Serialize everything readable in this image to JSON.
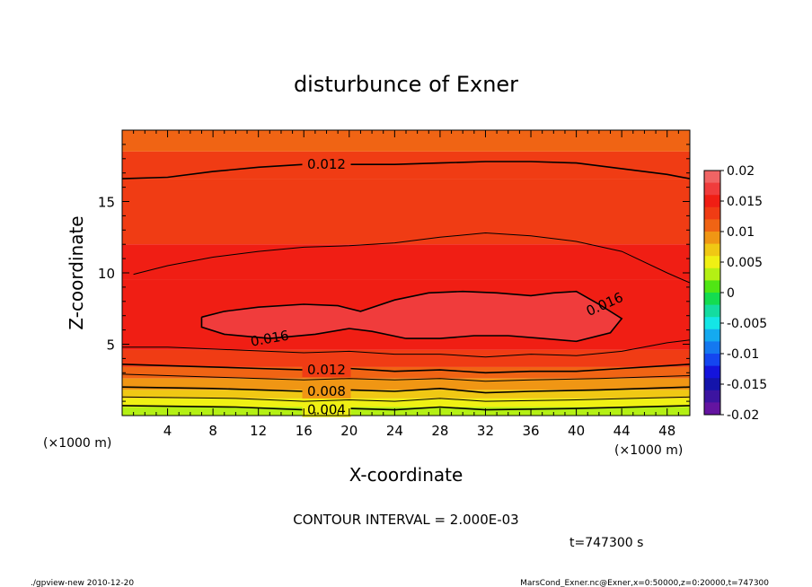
{
  "chart_data": {
    "type": "contour",
    "title": "disturbunce of Exner",
    "xlabel": "X-coordinate",
    "ylabel": "Z-coordinate",
    "x_unit_left": "(×1000 m)",
    "x_unit_right": "(×1000 m)",
    "xlim": [
      0,
      50
    ],
    "ylim": [
      0,
      20
    ],
    "x_ticks": [
      4,
      8,
      12,
      16,
      20,
      24,
      28,
      32,
      36,
      40,
      44,
      48
    ],
    "y_ticks": [
      5,
      10,
      15
    ],
    "contour_interval_text": "CONTOUR INTERVAL = 2.000E-03",
    "time_text": "t=747300 s",
    "footer_left": "./gpview-new   2010-12-20",
    "footer_right": "MarsCond_Exner.nc@Exner,x=0:50000,z=0:20000,t=747300",
    "colorbar": {
      "ticks": [
        "0.02",
        "0.015",
        "0.01",
        "0.005",
        "0",
        "-0.005",
        "-0.01",
        "-0.015",
        "-0.02"
      ],
      "levels": [
        {
          "from": 0.018,
          "to": 0.02,
          "color": "#f06464"
        },
        {
          "from": 0.016,
          "to": 0.018,
          "color": "#f03c3c"
        },
        {
          "from": 0.014,
          "to": 0.016,
          "color": "#f01e14"
        },
        {
          "from": 0.012,
          "to": 0.014,
          "color": "#f03c14"
        },
        {
          "from": 0.01,
          "to": 0.012,
          "color": "#f06414"
        },
        {
          "from": 0.008,
          "to": 0.01,
          "color": "#f09614"
        },
        {
          "from": 0.006,
          "to": 0.008,
          "color": "#f0c814"
        },
        {
          "from": 0.004,
          "to": 0.006,
          "color": "#f0f014"
        },
        {
          "from": 0.002,
          "to": 0.004,
          "color": "#b4f014"
        },
        {
          "from": 0.0,
          "to": 0.002,
          "color": "#50e614"
        },
        {
          "from": -0.002,
          "to": 0.0,
          "color": "#14dc50"
        },
        {
          "from": -0.004,
          "to": -0.002,
          "color": "#14dca0"
        },
        {
          "from": -0.006,
          "to": -0.004,
          "color": "#14e6e6"
        },
        {
          "from": -0.008,
          "to": -0.006,
          "color": "#14aaf0"
        },
        {
          "from": -0.01,
          "to": -0.008,
          "color": "#1478f0"
        },
        {
          "from": -0.012,
          "to": -0.01,
          "color": "#1446f0"
        },
        {
          "from": -0.014,
          "to": -0.012,
          "color": "#1414dc"
        },
        {
          "from": -0.016,
          "to": -0.014,
          "color": "#1414aa"
        },
        {
          "from": -0.018,
          "to": -0.016,
          "color": "#3c14a0"
        },
        {
          "from": -0.02,
          "to": -0.018,
          "color": "#6414a0"
        }
      ]
    },
    "contours": [
      {
        "level": 0.016,
        "label": "0.016",
        "points": [
          [
            7,
            6.9
          ],
          [
            9,
            7.3
          ],
          [
            12,
            7.6
          ],
          [
            16,
            7.8
          ],
          [
            19,
            7.7
          ],
          [
            21,
            7.3
          ],
          [
            24,
            8.1
          ],
          [
            27,
            8.6
          ],
          [
            30,
            8.7
          ],
          [
            33,
            8.6
          ],
          [
            36,
            8.4
          ],
          [
            38,
            8.6
          ],
          [
            40,
            8.7
          ],
          [
            42,
            7.8
          ],
          [
            44,
            6.8
          ],
          [
            43,
            5.8
          ],
          [
            40,
            5.2
          ],
          [
            37,
            5.4
          ],
          [
            34,
            5.6
          ],
          [
            31,
            5.6
          ],
          [
            28,
            5.4
          ],
          [
            25,
            5.4
          ],
          [
            22,
            5.9
          ],
          [
            20,
            6.1
          ],
          [
            17,
            5.7
          ],
          [
            13,
            5.4
          ],
          [
            9,
            5.7
          ],
          [
            7,
            6.2
          ],
          [
            7,
            6.9
          ]
        ]
      },
      {
        "level": 0.014,
        "points": [
          [
            1,
            9.9
          ],
          [
            4,
            10.5
          ],
          [
            8,
            11.1
          ],
          [
            12,
            11.5
          ],
          [
            16,
            11.8
          ],
          [
            20,
            11.9
          ],
          [
            24,
            12.1
          ],
          [
            28,
            12.5
          ],
          [
            32,
            12.8
          ],
          [
            36,
            12.6
          ],
          [
            40,
            12.2
          ],
          [
            44,
            11.5
          ],
          [
            48,
            10.0
          ],
          [
            50,
            9.3
          ]
        ]
      },
      {
        "level": 0.014,
        "points": [
          [
            0,
            4.8
          ],
          [
            4,
            4.8
          ],
          [
            10,
            4.6
          ],
          [
            16,
            4.4
          ],
          [
            20,
            4.5
          ],
          [
            24,
            4.3
          ],
          [
            28,
            4.3
          ],
          [
            32,
            4.1
          ],
          [
            36,
            4.3
          ],
          [
            40,
            4.2
          ],
          [
            44,
            4.5
          ],
          [
            48,
            5.1
          ],
          [
            50,
            5.3
          ]
        ]
      },
      {
        "level": 0.012,
        "label": "0.012",
        "points": [
          [
            0,
            16.6
          ],
          [
            4,
            16.7
          ],
          [
            8,
            17.1
          ],
          [
            12,
            17.4
          ],
          [
            16,
            17.6
          ],
          [
            20,
            17.6
          ],
          [
            24,
            17.6
          ],
          [
            28,
            17.7
          ],
          [
            32,
            17.8
          ],
          [
            36,
            17.8
          ],
          [
            40,
            17.7
          ],
          [
            44,
            17.3
          ],
          [
            48,
            16.9
          ],
          [
            50,
            16.6
          ]
        ]
      },
      {
        "level": 0.012,
        "label": "0.012",
        "points": [
          [
            0,
            3.6
          ],
          [
            4,
            3.5
          ],
          [
            8,
            3.4
          ],
          [
            12,
            3.3
          ],
          [
            16,
            3.2
          ],
          [
            20,
            3.3
          ],
          [
            24,
            3.1
          ],
          [
            28,
            3.2
          ],
          [
            32,
            3.0
          ],
          [
            36,
            3.1
          ],
          [
            40,
            3.1
          ],
          [
            44,
            3.3
          ],
          [
            48,
            3.5
          ],
          [
            50,
            3.6
          ]
        ]
      },
      {
        "level": 0.01,
        "points": [
          [
            0,
            2.9
          ],
          [
            8,
            2.7
          ],
          [
            16,
            2.5
          ],
          [
            20,
            2.6
          ],
          [
            24,
            2.5
          ],
          [
            28,
            2.6
          ],
          [
            32,
            2.4
          ],
          [
            36,
            2.5
          ],
          [
            42,
            2.6
          ],
          [
            50,
            2.8
          ]
        ]
      },
      {
        "level": 0.008,
        "label": "0.008",
        "points": [
          [
            0,
            2.0
          ],
          [
            8,
            1.9
          ],
          [
            16,
            1.7
          ],
          [
            20,
            1.8
          ],
          [
            24,
            1.7
          ],
          [
            28,
            1.9
          ],
          [
            32,
            1.6
          ],
          [
            36,
            1.7
          ],
          [
            42,
            1.8
          ],
          [
            50,
            2.0
          ]
        ]
      },
      {
        "level": 0.006,
        "points": [
          [
            0,
            1.3
          ],
          [
            10,
            1.2
          ],
          [
            16,
            1.0
          ],
          [
            20,
            1.1
          ],
          [
            24,
            1.0
          ],
          [
            28,
            1.2
          ],
          [
            32,
            1.0
          ],
          [
            40,
            1.1
          ],
          [
            50,
            1.3
          ]
        ]
      },
      {
        "level": 0.004,
        "label": "0.004",
        "points": [
          [
            0,
            0.7
          ],
          [
            10,
            0.6
          ],
          [
            16,
            0.4
          ],
          [
            20,
            0.5
          ],
          [
            24,
            0.4
          ],
          [
            28,
            0.6
          ],
          [
            32,
            0.4
          ],
          [
            40,
            0.5
          ],
          [
            50,
            0.7
          ]
        ]
      }
    ]
  }
}
